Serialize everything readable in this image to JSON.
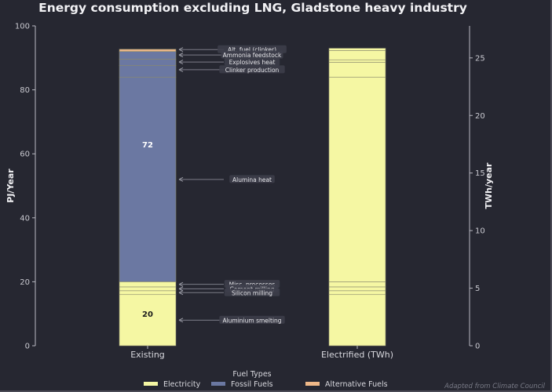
{
  "chart_data": {
    "type": "bar",
    "stacked": true,
    "title": "Energy consumption excluding LNG, Gladstone heavy industry",
    "xlabel": "",
    "ylabel": "PJ/Year",
    "ylabel_right": "TWh/year",
    "ylim": [
      0,
      100
    ],
    "ylim_right": [
      0,
      27.78
    ],
    "yticks": [
      "0",
      "20",
      "40",
      "60",
      "80",
      "100"
    ],
    "yticks_right": [
      "0",
      "5",
      "10",
      "15",
      "20",
      "25"
    ],
    "categories": [
      "Existing",
      "Electrified (TWh)"
    ],
    "fuel_colors": {
      "Electricity": "#f5f7a3",
      "Fossil Fuels": "#6b78a2",
      "Alternative Fuels": "#efb888"
    },
    "stacks": [
      {
        "category": "Existing",
        "segments": [
          {
            "label": "Aluminium smelting",
            "fuel": "Electricity",
            "value": 16.0
          },
          {
            "label": "Cement milling",
            "fuel": "Electricity",
            "value": 1.2
          },
          {
            "label": "Silicon milling",
            "fuel": "Electricity",
            "value": 1.2
          },
          {
            "label": "Misc. processes",
            "fuel": "Electricity",
            "value": 1.6
          },
          {
            "label": "Alumina heat",
            "fuel": "Fossil Fuels",
            "value": 64.0
          },
          {
            "label": "Clinker production",
            "fuel": "Fossil Fuels",
            "value": 3.6
          },
          {
            "label": "Explosives heat",
            "fuel": "Fossil Fuels",
            "value": 2.0
          },
          {
            "label": "Ammonia feedstock",
            "fuel": "Fossil Fuels",
            "value": 2.4
          },
          {
            "label": "Alt. fuel (clinker)",
            "fuel": "Alternative Fuels",
            "value": 0.7
          }
        ],
        "totals_labels": [
          {
            "fuel": "Electricity",
            "text": "20"
          },
          {
            "fuel": "Fossil Fuels",
            "text": "72"
          }
        ]
      },
      {
        "category": "Electrified (TWh)",
        "segments": [
          {
            "label": "Aluminium smelting",
            "fuel": "Electricity",
            "value": 16.0
          },
          {
            "label": "Cement milling",
            "fuel": "Electricity",
            "value": 1.2
          },
          {
            "label": "Silicon milling",
            "fuel": "Electricity",
            "value": 1.2
          },
          {
            "label": "Misc. processes",
            "fuel": "Electricity",
            "value": 1.6
          },
          {
            "label": "Alumina heat",
            "fuel": "Electricity",
            "value": 64.0
          },
          {
            "label": "Clinker production",
            "fuel": "Electricity",
            "value": 4.6
          },
          {
            "label": "Explosives heat",
            "fuel": "Electricity",
            "value": 0.8
          },
          {
            "label": "Ammonia feedstock",
            "fuel": "Electricity",
            "value": 2.9
          },
          {
            "label": "Alt. fuel (clinker)",
            "fuel": "Electricity",
            "value": 0.7
          }
        ]
      }
    ],
    "annotations": [
      {
        "text": "Alt. fuel (clinker)",
        "target_value": 92.6
      },
      {
        "text": "Ammonia feedstock",
        "target_value": 90.9
      },
      {
        "text": "Explosives heat",
        "target_value": 88.7
      },
      {
        "text": "Clinker production",
        "target_value": 86.3
      },
      {
        "text": "Alumina heat",
        "target_value": 52.0
      },
      {
        "text": "Misc. processes",
        "target_value": 19.2
      },
      {
        "text": "Cement milling",
        "target_value": 17.8
      },
      {
        "text": "Silicon milling",
        "target_value": 16.6
      },
      {
        "text": "Aluminium smelting",
        "target_value": 8.0
      }
    ],
    "legend": {
      "title": "Fuel Types",
      "entries": [
        "Electricity",
        "Fossil Fuels",
        "Alternative Fuels"
      ],
      "placement": "bottom-center"
    },
    "credit": "Adapted from Climate Council",
    "grid": false
  }
}
